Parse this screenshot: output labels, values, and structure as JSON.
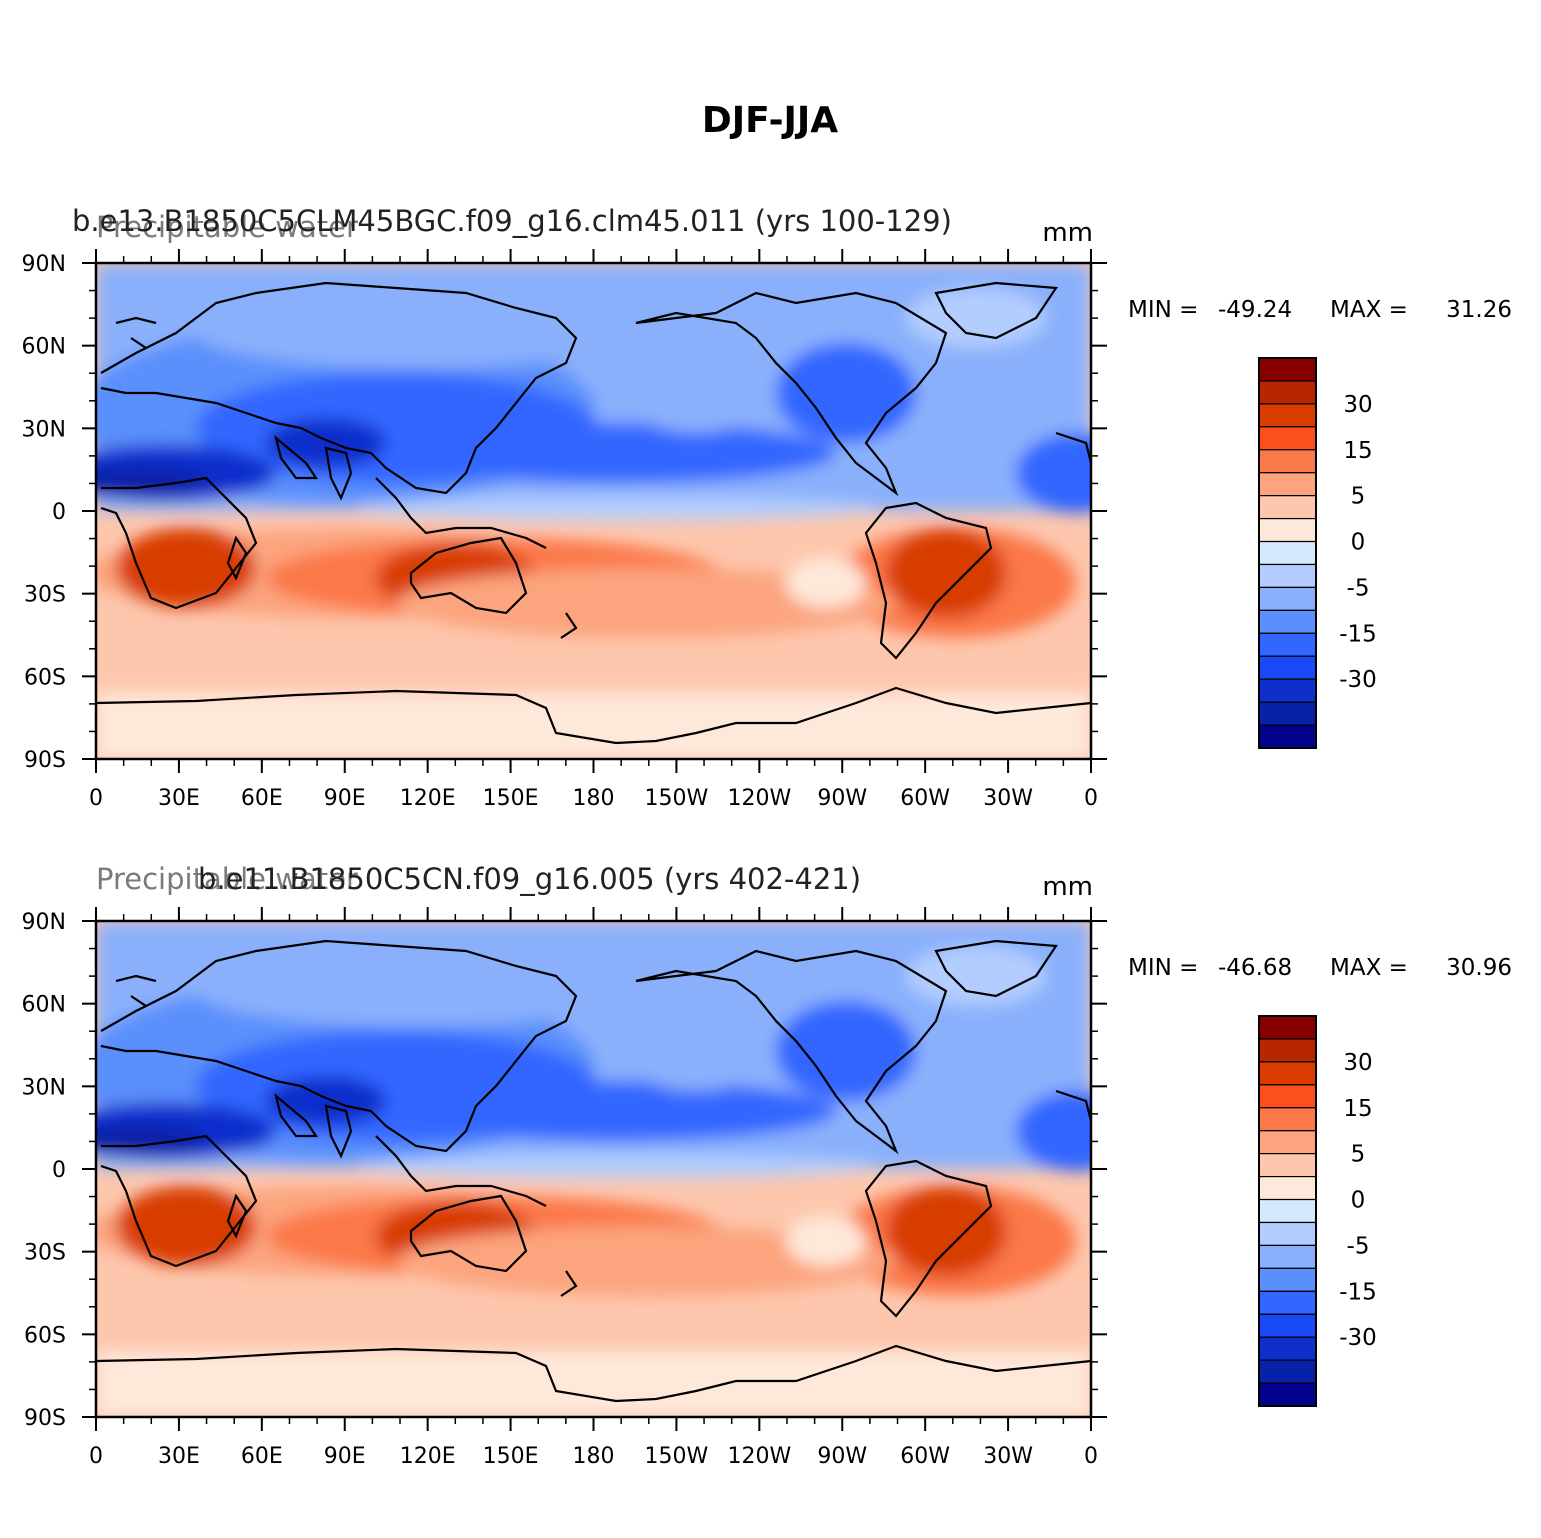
{
  "figure": {
    "title": "DJF-JJA"
  },
  "panels": [
    {
      "case_title": "b.e13.B1850C5CLM45BGC.f09_g16.clm45.011 (yrs 100-129)",
      "variable": "Precipitable water",
      "units": "mm",
      "min_label": "MIN =",
      "min_value": "-49.24",
      "max_label": "MAX =",
      "max_value": "31.26"
    },
    {
      "case_title": "b.e11.B1850C5CN.f09_g16.005 (yrs 402-421)",
      "variable": "Precipitable water",
      "units": "mm",
      "min_label": "MIN =",
      "min_value": "-46.68",
      "max_label": "MAX =",
      "max_value": "30.96"
    }
  ],
  "x_ticks": [
    "0",
    "30E",
    "60E",
    "90E",
    "120E",
    "150E",
    "180",
    "150W",
    "120W",
    "90W",
    "60W",
    "30W",
    "0"
  ],
  "y_ticks": [
    "90N",
    "60N",
    "30N",
    "0",
    "30S",
    "60S",
    "90S"
  ],
  "colorbar": {
    "colors": [
      "#870000",
      "#b82500",
      "#d83c00",
      "#fc4f1c",
      "#fb784a",
      "#fca47e",
      "#fdc7ad",
      "#fee8da",
      "#d4e9fd",
      "#b2cdfe",
      "#8ab0fc",
      "#5a8ffc",
      "#3366ff",
      "#1849f5",
      "#0e2fcc",
      "#0722a8",
      "#03028e"
    ],
    "labels": [
      "30",
      "15",
      "5",
      "0",
      "-5",
      "-15",
      "-30"
    ]
  },
  "map_colors": {
    "ocean_base": "#fdc7ad",
    "north": "#8ab0fc",
    "south_pole": "#fee8da",
    "coastline": "#000000"
  }
}
